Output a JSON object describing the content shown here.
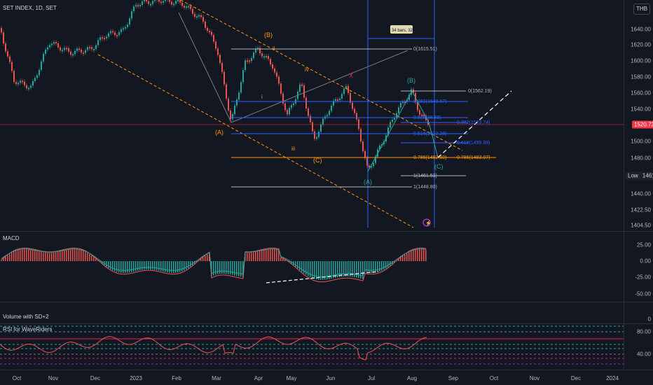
{
  "header": {
    "symbol": "SET INDEX",
    "interval": "1D",
    "exchange": "SET",
    "currency_button": "THB"
  },
  "price_axis": [
    "1640.00",
    "1620.00",
    "1600.00",
    "1580.00",
    "1560.00",
    "1540.00",
    "1500.00",
    "1480.00",
    "1440.00",
    "1422.50",
    "1404.50"
  ],
  "current_price": "1520.73",
  "low_label": "Low",
  "low_value": "1461.61",
  "macd": {
    "title": "MACD",
    "axis": [
      "25.00",
      "0.00",
      "-25.00",
      "-50.00"
    ]
  },
  "volume": {
    "title": "Volume with SD+2",
    "axis": [
      "0"
    ]
  },
  "rsi": {
    "title": "RSI for WaveRiders",
    "axis": [
      "80.00",
      "40.00"
    ]
  },
  "time_axis": [
    "Oct",
    "Nov",
    "Dec",
    "2023",
    "Feb",
    "Mar",
    "Apr",
    "May",
    "Jun",
    "Jul",
    "Aug",
    "Sep",
    "Oct",
    "Nov",
    "Dec",
    "2024"
  ],
  "wave_labels": {
    "B_top": "(B)",
    "A_left": "(A)",
    "C_mid": "(C)",
    "iii": "iii",
    "ii": "ii",
    "iv": "iv",
    "i": "i",
    "X": "X",
    "A_green": "(A)",
    "B_green": "(B)",
    "C_green": "(C)"
  },
  "fib_levels": [
    "0(1615.51)",
    "0(1562.19)",
    "0.382(1549.67)",
    "0.5(1538.88)",
    "0.382(1523.74)",
    "0.618(1512.28)",
    "0.618(1499.98)",
    "0.786(1482.60)",
    "0.786(1483.07)",
    "1(1461.53)",
    "1(1448.80)"
  ],
  "date_range_tooltip": "34 bars, 32d",
  "colors": {
    "background": "#131722",
    "up": "#26a69a",
    "down": "#ef5350",
    "grid": "#2a2e39",
    "fib_blue": "#2962ff",
    "fib_orange": "#ff9800",
    "current_price": "#f23645"
  }
}
